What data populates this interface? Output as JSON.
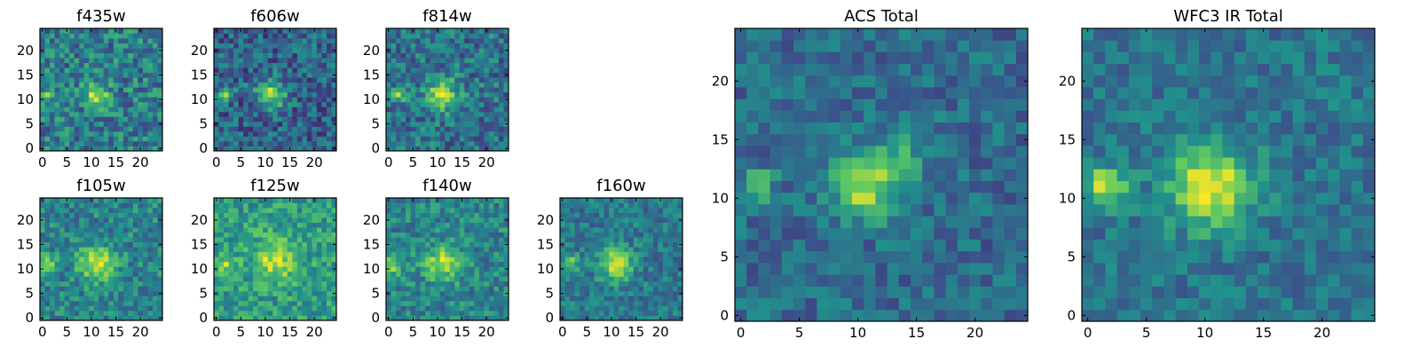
{
  "chart_data": [
    {
      "type": "heatmap",
      "title": "f435w",
      "xlim": [
        0,
        25
      ],
      "ylim": [
        0,
        25
      ],
      "xticks": [
        0,
        5,
        10,
        15,
        20
      ],
      "yticks": [
        0,
        5,
        10,
        15,
        20
      ],
      "sources": [
        {
          "x": 11.5,
          "y": 11.5,
          "peak": 0.5,
          "sigma": 1.7
        },
        {
          "x": 1.5,
          "y": 11.5,
          "peak": 0.25,
          "sigma": 1.1
        }
      ],
      "background": 0.42,
      "noise": 0.22
    },
    {
      "type": "heatmap",
      "title": "f606w",
      "xlim": [
        0,
        25
      ],
      "ylim": [
        0,
        25
      ],
      "xticks": [
        0,
        5,
        10,
        15,
        20
      ],
      "yticks": [
        0,
        5,
        10,
        15,
        20
      ],
      "sources": [
        {
          "x": 11.5,
          "y": 11.5,
          "peak": 0.55,
          "sigma": 2.0
        },
        {
          "x": 2.5,
          "y": 11.5,
          "peak": 0.45,
          "sigma": 1.0
        }
      ],
      "background": 0.32,
      "noise": 0.2
    },
    {
      "type": "heatmap",
      "title": "f814w",
      "xlim": [
        0,
        25
      ],
      "ylim": [
        0,
        25
      ],
      "xticks": [
        0,
        5,
        10,
        15,
        20
      ],
      "yticks": [
        0,
        5,
        10,
        15,
        20
      ],
      "sources": [
        {
          "x": 11.5,
          "y": 11.5,
          "peak": 0.5,
          "sigma": 2.2
        },
        {
          "x": 2.5,
          "y": 11.5,
          "peak": 0.4,
          "sigma": 1.1
        }
      ],
      "background": 0.38,
      "noise": 0.2
    },
    {
      "type": "heatmap",
      "title": "f105w",
      "xlim": [
        0,
        25
      ],
      "ylim": [
        0,
        25
      ],
      "xticks": [
        0,
        5,
        10,
        15,
        20
      ],
      "yticks": [
        0,
        5,
        10,
        15,
        20
      ],
      "sources": [
        {
          "x": 11.5,
          "y": 11.5,
          "peak": 0.45,
          "sigma": 2.6
        },
        {
          "x": 1.5,
          "y": 11.5,
          "peak": 0.3,
          "sigma": 1.4
        }
      ],
      "background": 0.45,
      "noise": 0.18
    },
    {
      "type": "heatmap",
      "title": "f125w",
      "xlim": [
        0,
        25
      ],
      "ylim": [
        0,
        25
      ],
      "xticks": [
        0,
        5,
        10,
        15,
        20
      ],
      "yticks": [
        0,
        5,
        10,
        15,
        20
      ],
      "sources": [
        {
          "x": 12.5,
          "y": 12.5,
          "peak": 0.35,
          "sigma": 3.0
        },
        {
          "x": 2.5,
          "y": 11.5,
          "peak": 0.25,
          "sigma": 1.6
        }
      ],
      "background": 0.55,
      "noise": 0.18
    },
    {
      "type": "heatmap",
      "title": "f140w",
      "xlim": [
        0,
        25
      ],
      "ylim": [
        0,
        25
      ],
      "xticks": [
        0,
        5,
        10,
        15,
        20
      ],
      "yticks": [
        0,
        5,
        10,
        15,
        20
      ],
      "sources": [
        {
          "x": 11.5,
          "y": 11.5,
          "peak": 0.45,
          "sigma": 2.4
        },
        {
          "x": 1.5,
          "y": 11.5,
          "peak": 0.35,
          "sigma": 1.5
        }
      ],
      "background": 0.45,
      "noise": 0.17
    },
    {
      "type": "heatmap",
      "title": "f160w",
      "xlim": [
        0,
        25
      ],
      "ylim": [
        0,
        25
      ],
      "xticks": [
        0,
        5,
        10,
        15,
        20
      ],
      "yticks": [
        0,
        5,
        10,
        15,
        20
      ],
      "sources": [
        {
          "x": 11.5,
          "y": 11.5,
          "peak": 0.5,
          "sigma": 2.4
        },
        {
          "x": 2.0,
          "y": 11.5,
          "peak": 0.4,
          "sigma": 1.3
        }
      ],
      "background": 0.4,
      "noise": 0.15
    },
    {
      "type": "heatmap",
      "title": "ACS Total",
      "xlim": [
        0,
        25
      ],
      "ylim": [
        0,
        25
      ],
      "xticks": [
        0,
        5,
        10,
        15,
        20
      ],
      "yticks": [
        0,
        5,
        10,
        15,
        20
      ],
      "sources": [
        {
          "x": 11.0,
          "y": 11.5,
          "peak": 0.55,
          "sigma": 1.9
        },
        {
          "x": 2.0,
          "y": 11.5,
          "peak": 0.5,
          "sigma": 0.9
        },
        {
          "x": 14.5,
          "y": 14.5,
          "peak": 0.2,
          "sigma": 2.0
        }
      ],
      "background": 0.35,
      "noise": 0.14
    },
    {
      "type": "heatmap",
      "title": "WFC3 IR Total",
      "xlim": [
        0,
        25
      ],
      "ylim": [
        0,
        25
      ],
      "xticks": [
        0,
        5,
        10,
        15,
        20
      ],
      "yticks": [
        0,
        5,
        10,
        15,
        20
      ],
      "sources": [
        {
          "x": 11.0,
          "y": 11.5,
          "peak": 0.6,
          "sigma": 2.5
        },
        {
          "x": 2.0,
          "y": 11.5,
          "peak": 0.5,
          "sigma": 1.3
        }
      ],
      "background": 0.38,
      "noise": 0.13
    }
  ],
  "colors": {
    "colormap": "viridis",
    "frame": "#000000",
    "viridis_stops": [
      "#440154",
      "#3b528b",
      "#21918c",
      "#5ec962",
      "#fde725"
    ]
  }
}
